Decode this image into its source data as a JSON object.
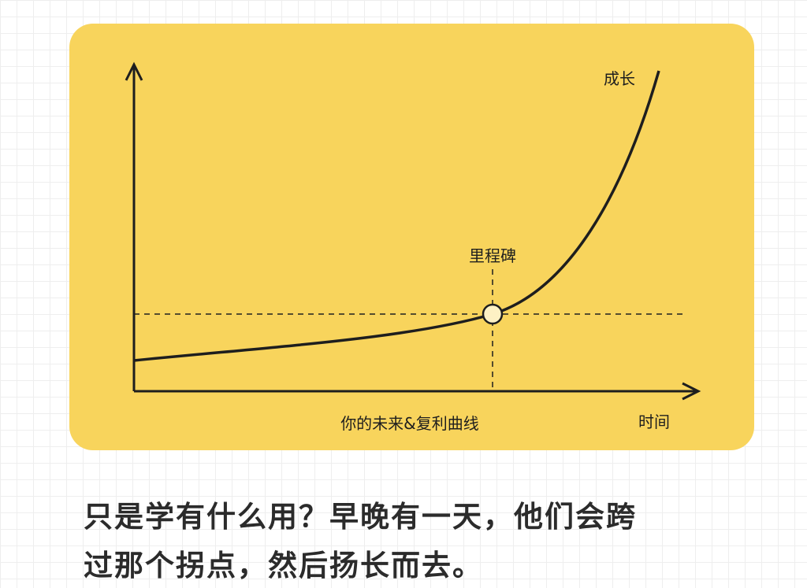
{
  "diagram": {
    "curve_label": "成长",
    "milestone_label": "里程碑",
    "x_axis_label": "时间",
    "caption": "你的未来&复利曲线"
  },
  "body": {
    "lines": [
      "只是学有什么用？早晚有一天，他们会跨",
      "过那个拐点，然后扬长而去。"
    ]
  }
}
